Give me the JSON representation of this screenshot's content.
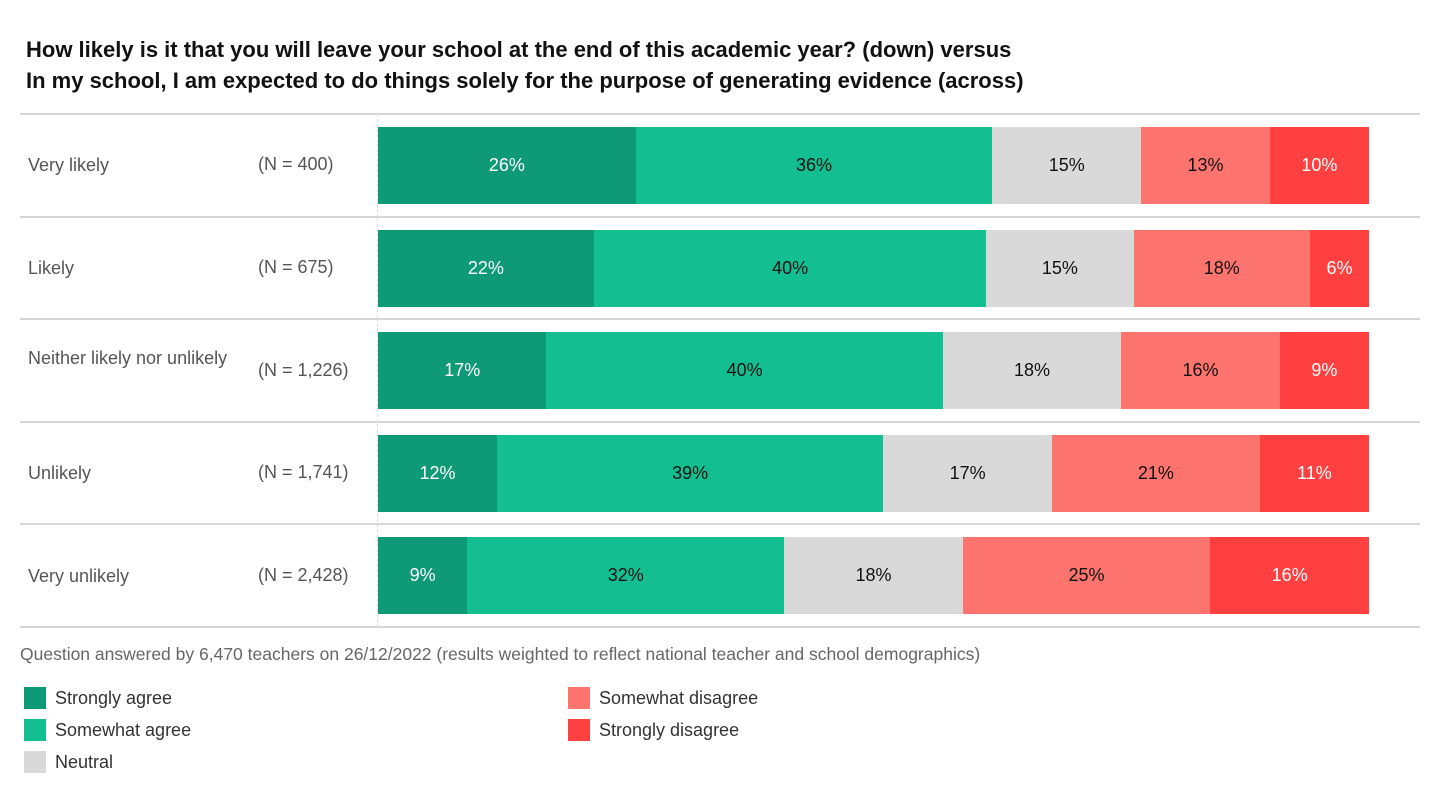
{
  "chart_data": {
    "type": "bar",
    "orientation": "horizontal-stacked-100",
    "title_lines": [
      "How likely is it that you will leave your school at the end of this academic year? (down) versus",
      "In my school, I am expected to do things solely for the purpose of generating evidence (across)"
    ],
    "categories": [
      "Very likely",
      "Likely",
      "Neither likely nor unlikely",
      "Unlikely",
      "Very unlikely"
    ],
    "n_labels": [
      "(N = 400)",
      "(N = 675)",
      "(N = 1,226)",
      "(N = 1,741)",
      "(N = 2,428)"
    ],
    "series": [
      {
        "name": "Strongly agree",
        "color": "#0f9a77",
        "text_color": "#ffffff",
        "values": [
          26,
          22,
          17,
          12,
          9
        ]
      },
      {
        "name": "Somewhat agree",
        "color": "#13bf91",
        "text_color": "#111111",
        "values": [
          36,
          40,
          40,
          39,
          32
        ]
      },
      {
        "name": "Neutral",
        "color": "#d9d9d9",
        "text_color": "#111111",
        "values": [
          15,
          15,
          18,
          17,
          18
        ]
      },
      {
        "name": "Somewhat disagree",
        "color": "#fd746e",
        "text_color": "#111111",
        "values": [
          13,
          18,
          16,
          21,
          25
        ]
      },
      {
        "name": "Strongly disagree",
        "color": "#fe4040",
        "text_color": "#ffffff",
        "values": [
          10,
          6,
          9,
          11,
          16
        ]
      }
    ],
    "value_suffix": "%",
    "xlim": [
      0,
      100
    ],
    "legend_placement": "bottom-left",
    "footnote": "Question answered by 6,470 teachers on 26/12/2022 (results weighted to reflect national teacher and school demographics)"
  }
}
